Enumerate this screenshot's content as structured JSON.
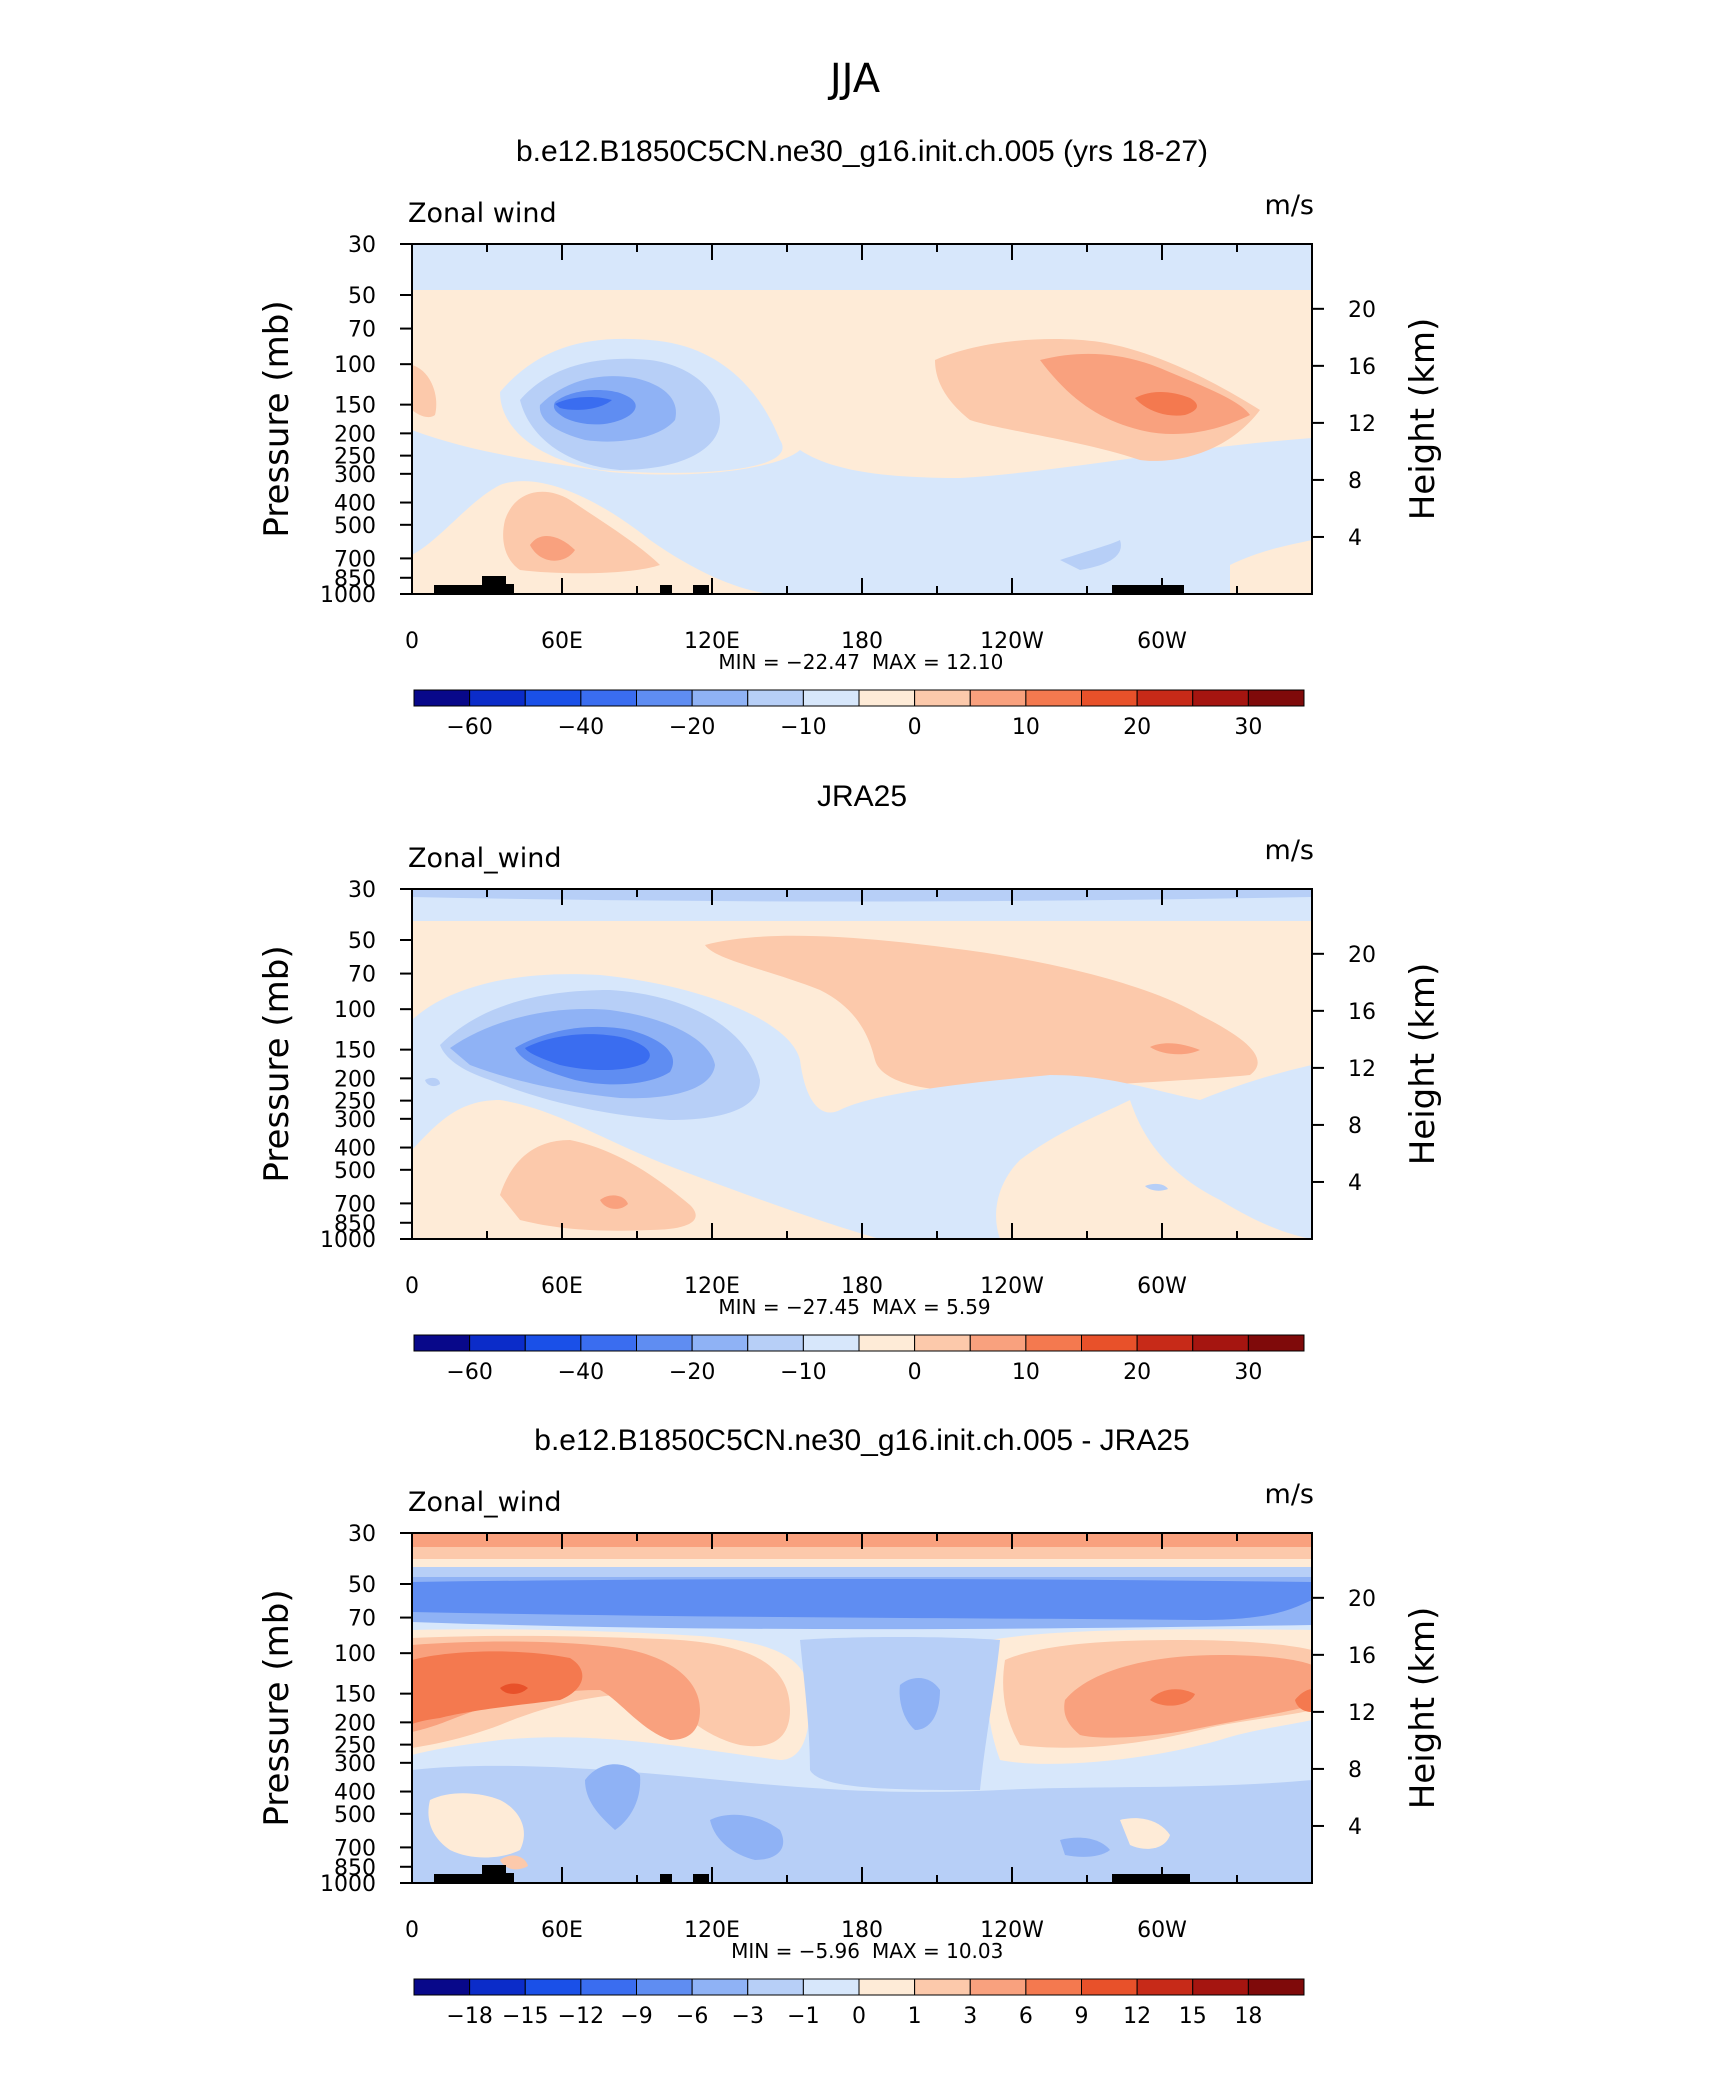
{
  "figure_title": "JJA",
  "chart_data": [
    {
      "type": "heatmap",
      "title": "b.e12.B1850C5CN.ne30_g16.init.ch.005 (yrs 18-27)",
      "left_label": "Zonal wind",
      "units": "m/s",
      "ylabel": "Pressure (mb)",
      "ylabel2": "Height (km)",
      "x_ticks": [
        "0",
        "60E",
        "120E",
        "180",
        "120W",
        "60W"
      ],
      "y_ticks": [
        "30",
        "50",
        "70",
        "100",
        "150",
        "200",
        "250",
        "300",
        "400",
        "500",
        "700",
        "850",
        "1000"
      ],
      "y2_ticks": [
        "20",
        "16",
        "12",
        "8",
        "4"
      ],
      "min_text": "MIN =  −22.47",
      "max_text": "MAX =   12.10",
      "min": -22.47,
      "max": 12.1,
      "colorbar_labels": [
        "−60",
        "−40",
        "−20",
        "−10",
        "0",
        "10",
        "20",
        "30"
      ],
      "levels": [
        -60,
        -50,
        -40,
        -30,
        -20,
        -15,
        -10,
        -5,
        0,
        5,
        10,
        15,
        20,
        25,
        30
      ],
      "colors": [
        "#08088a",
        "#0b2cc9",
        "#1a50e8",
        "#3a6df0",
        "#5f8df2",
        "#8fb2f5",
        "#b7cff7",
        "#d7e7fb",
        "#feebd7",
        "#fcc9ab",
        "#f9a17e",
        "#f4794f",
        "#e8512a",
        "#c72a18",
        "#a51510",
        "#7f0a0a"
      ]
    },
    {
      "type": "heatmap",
      "title": "JRA25",
      "left_label": "Zonal_wind",
      "units": "m/s",
      "ylabel": "Pressure (mb)",
      "ylabel2": "Height (km)",
      "x_ticks": [
        "0",
        "60E",
        "120E",
        "180",
        "120W",
        "60W"
      ],
      "y_ticks": [
        "30",
        "50",
        "70",
        "100",
        "150",
        "200",
        "250",
        "300",
        "400",
        "500",
        "700",
        "850",
        "1000"
      ],
      "y2_ticks": [
        "20",
        "16",
        "12",
        "8",
        "4"
      ],
      "min_text": "MIN =  −27.45",
      "max_text": "MAX =     5.59",
      "min": -27.45,
      "max": 5.59,
      "colorbar_labels": [
        "−60",
        "−40",
        "−20",
        "−10",
        "0",
        "10",
        "20",
        "30"
      ],
      "levels": [
        -60,
        -50,
        -40,
        -30,
        -20,
        -15,
        -10,
        -5,
        0,
        5,
        10,
        15,
        20,
        25,
        30
      ],
      "colors": [
        "#08088a",
        "#0b2cc9",
        "#1a50e8",
        "#3a6df0",
        "#5f8df2",
        "#8fb2f5",
        "#b7cff7",
        "#d7e7fb",
        "#feebd7",
        "#fcc9ab",
        "#f9a17e",
        "#f4794f",
        "#e8512a",
        "#c72a18",
        "#a51510",
        "#7f0a0a"
      ]
    },
    {
      "type": "heatmap",
      "title": "b.e12.B1850C5CN.ne30_g16.init.ch.005 - JRA25",
      "left_label": "Zonal_wind",
      "units": "m/s",
      "ylabel": "Pressure (mb)",
      "ylabel2": "Height (km)",
      "x_ticks": [
        "0",
        "60E",
        "120E",
        "180",
        "120W",
        "60W"
      ],
      "y_ticks": [
        "30",
        "50",
        "70",
        "100",
        "150",
        "200",
        "250",
        "300",
        "400",
        "500",
        "700",
        "850",
        "1000"
      ],
      "y2_ticks": [
        "20",
        "16",
        "12",
        "8",
        "4"
      ],
      "min_text": "MIN =    −5.96",
      "max_text": "MAX =   10.03",
      "min": -5.96,
      "max": 10.03,
      "colorbar_labels": [
        "−18",
        "−15",
        "−12",
        "−9",
        "−6",
        "−3",
        "−1",
        "0",
        "1",
        "3",
        "6",
        "9",
        "12",
        "15",
        "18"
      ],
      "levels": [
        -18,
        -15,
        -12,
        -9,
        -6,
        -3,
        -1,
        0,
        1,
        3,
        6,
        9,
        12,
        15,
        18
      ],
      "colors": [
        "#08088a",
        "#0b2cc9",
        "#1a50e8",
        "#3a6df0",
        "#5f8df2",
        "#8fb2f5",
        "#b7cff7",
        "#d7e7fb",
        "#feebd7",
        "#fcc9ab",
        "#f9a17e",
        "#f4794f",
        "#e8512a",
        "#c72a18",
        "#a51510",
        "#7f0a0a"
      ]
    }
  ]
}
